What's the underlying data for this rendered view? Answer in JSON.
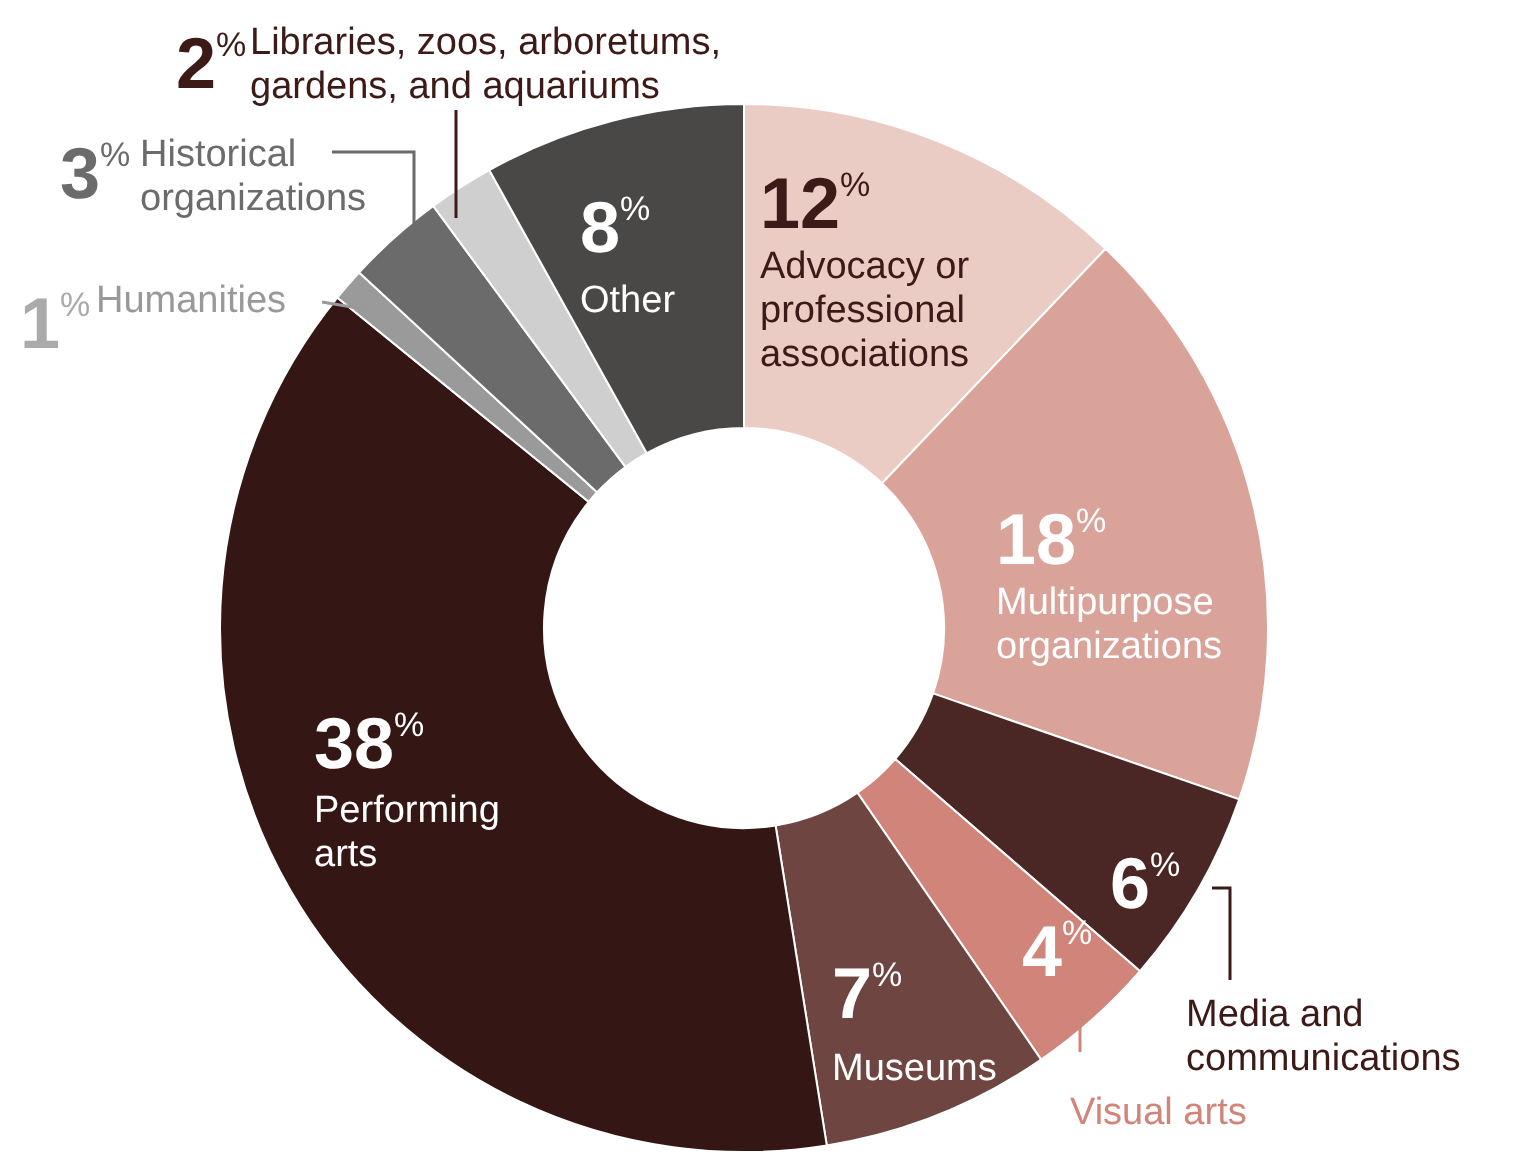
{
  "chart_data": {
    "type": "donut",
    "categories": [
      "Advocacy or professional associations",
      "Multipurpose organizations",
      "Media and communications",
      "Visual arts",
      "Museums",
      "Performing arts",
      "Humanities",
      "Historical organizations",
      "Libraries, zoos, arboretums, gardens, and aquariums",
      "Other"
    ],
    "values": [
      12,
      18,
      6,
      4,
      7,
      38,
      1,
      3,
      2,
      8
    ],
    "colors": [
      "#ebccc5",
      "#d9a39a",
      "#4a2724",
      "#d0847a",
      "#6e4540",
      "#341614",
      "#9a9a9a",
      "#6b6b6b",
      "#cfcfcf",
      "#4a4846"
    ],
    "value_labels": [
      "12%",
      "18%",
      "6%",
      "4%",
      "7%",
      "38%",
      "1%",
      "3%",
      "2%",
      "8%"
    ]
  }
}
